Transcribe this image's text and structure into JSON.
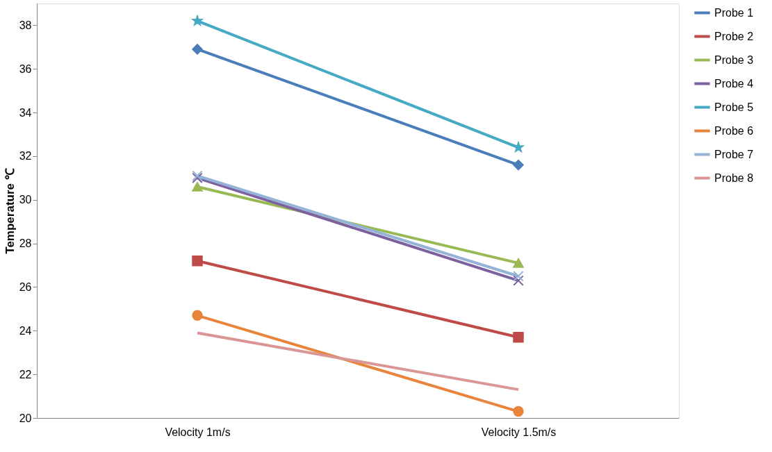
{
  "chart_data": {
    "type": "line",
    "ylabel": "Temperature ℃",
    "categories": [
      "Velocity 1m/s",
      "Velocity 1.5m/s"
    ],
    "ylim": [
      20,
      39
    ],
    "yticks": [
      20,
      22,
      24,
      26,
      28,
      30,
      32,
      34,
      36,
      38
    ],
    "grid": false,
    "legend": "right",
    "series": [
      {
        "name": "Probe 1",
        "color": "#4a7ebb",
        "marker": "diamond",
        "values": [
          36.9,
          31.6
        ]
      },
      {
        "name": "Probe 2",
        "color": "#be4b48",
        "marker": "square",
        "values": [
          27.2,
          23.7
        ]
      },
      {
        "name": "Probe 3",
        "color": "#98b954",
        "marker": "triangle",
        "values": [
          30.6,
          27.1
        ]
      },
      {
        "name": "Probe 4",
        "color": "#7d60a0",
        "marker": "cross",
        "values": [
          31.0,
          26.3
        ]
      },
      {
        "name": "Probe 5",
        "color": "#46aac5",
        "marker": "star",
        "values": [
          38.2,
          32.4
        ]
      },
      {
        "name": "Probe 6",
        "color": "#e8843c",
        "marker": "circle",
        "values": [
          24.7,
          20.3
        ]
      },
      {
        "name": "Probe 7",
        "color": "#95b3d7",
        "marker": "cross",
        "values": [
          31.1,
          26.5
        ]
      },
      {
        "name": "Probe 8",
        "color": "#d99694",
        "marker": "none",
        "values": [
          23.9,
          21.3
        ]
      }
    ]
  }
}
